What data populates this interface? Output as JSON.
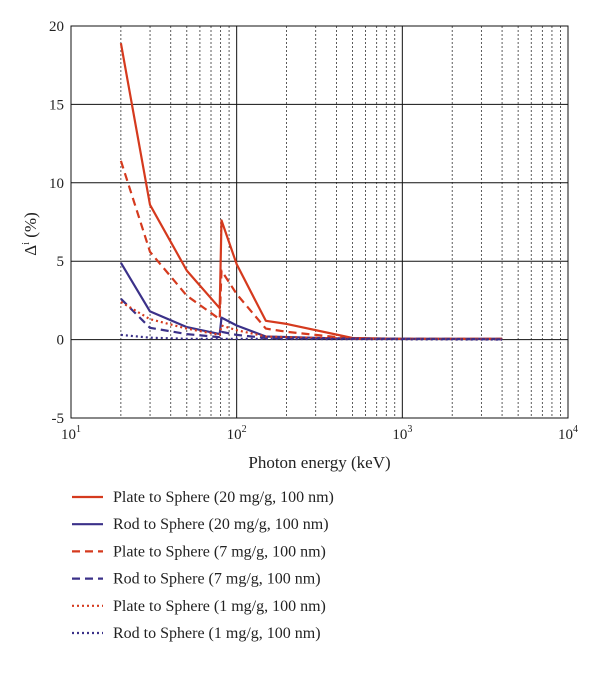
{
  "chart_data": {
    "type": "line",
    "title": "",
    "xlabel": "Photon energy (keV)",
    "ylabel": {
      "main": "Δ",
      "sup": "i",
      "unit": " (%)"
    },
    "x_scale": "log",
    "xlim": [
      10,
      10000
    ],
    "ylim": [
      -5,
      20
    ],
    "grid": true,
    "legend_placement": "below",
    "y_ticks": [
      "-5",
      "0",
      "5",
      "10",
      "15",
      "20"
    ],
    "x_ticks": [
      {
        "value": 10,
        "base": "10",
        "exp": "1"
      },
      {
        "value": 100,
        "base": "10",
        "exp": "2"
      },
      {
        "value": 1000,
        "base": "10",
        "exp": "3"
      },
      {
        "value": 10000,
        "base": "10",
        "exp": "4"
      }
    ],
    "series": [
      {
        "name": "Plate to Sphere (20 mg/g, 100 nm)",
        "color": "#d53a1e",
        "style": "solid",
        "points": [
          [
            20,
            18.9
          ],
          [
            30,
            8.6
          ],
          [
            50,
            4.4
          ],
          [
            79,
            2.0
          ],
          [
            81,
            7.6
          ],
          [
            100,
            4.8
          ],
          [
            150,
            1.2
          ],
          [
            200,
            1.0
          ],
          [
            500,
            0.1
          ],
          [
            1000,
            0.05
          ],
          [
            4000,
            0.05
          ]
        ]
      },
      {
        "name": "Rod to Sphere (20 mg/g, 100 nm)",
        "color": "#3b3189",
        "style": "solid",
        "points": [
          [
            20,
            4.9
          ],
          [
            30,
            1.8
          ],
          [
            50,
            0.8
          ],
          [
            79,
            0.35
          ],
          [
            81,
            1.4
          ],
          [
            100,
            0.9
          ],
          [
            150,
            0.2
          ],
          [
            500,
            0.05
          ],
          [
            4000,
            0.05
          ]
        ]
      },
      {
        "name": "Plate to Sphere (7 mg/g, 100 nm)",
        "color": "#d53a1e",
        "style": "dashed",
        "points": [
          [
            20,
            11.4
          ],
          [
            30,
            5.6
          ],
          [
            50,
            2.8
          ],
          [
            79,
            1.3
          ],
          [
            81,
            4.4
          ],
          [
            100,
            2.9
          ],
          [
            150,
            0.7
          ],
          [
            200,
            0.5
          ],
          [
            500,
            0.05
          ],
          [
            4000,
            0.05
          ]
        ]
      },
      {
        "name": "Rod to Sphere (7 mg/g, 100 nm)",
        "color": "#3b3189",
        "style": "dashed",
        "points": [
          [
            20,
            2.6
          ],
          [
            30,
            0.75
          ],
          [
            50,
            0.35
          ],
          [
            79,
            0.15
          ],
          [
            81,
            0.5
          ],
          [
            100,
            0.3
          ],
          [
            150,
            0.1
          ],
          [
            4000,
            0.02
          ]
        ]
      },
      {
        "name": "Plate to Sphere (1 mg/g, 100 nm)",
        "color": "#d53a1e",
        "style": "dotted",
        "points": [
          [
            20,
            2.4
          ],
          [
            30,
            1.3
          ],
          [
            50,
            0.7
          ],
          [
            79,
            0.3
          ],
          [
            81,
            0.9
          ],
          [
            100,
            0.6
          ],
          [
            150,
            0.2
          ],
          [
            500,
            0.05
          ],
          [
            4000,
            0.02
          ]
        ]
      },
      {
        "name": "Rod to Sphere (1 mg/g, 100 nm)",
        "color": "#3b3189",
        "style": "dotted",
        "points": [
          [
            20,
            0.3
          ],
          [
            30,
            0.12
          ],
          [
            50,
            0.05
          ],
          [
            80,
            0.05
          ],
          [
            4000,
            0.0
          ]
        ]
      }
    ]
  }
}
